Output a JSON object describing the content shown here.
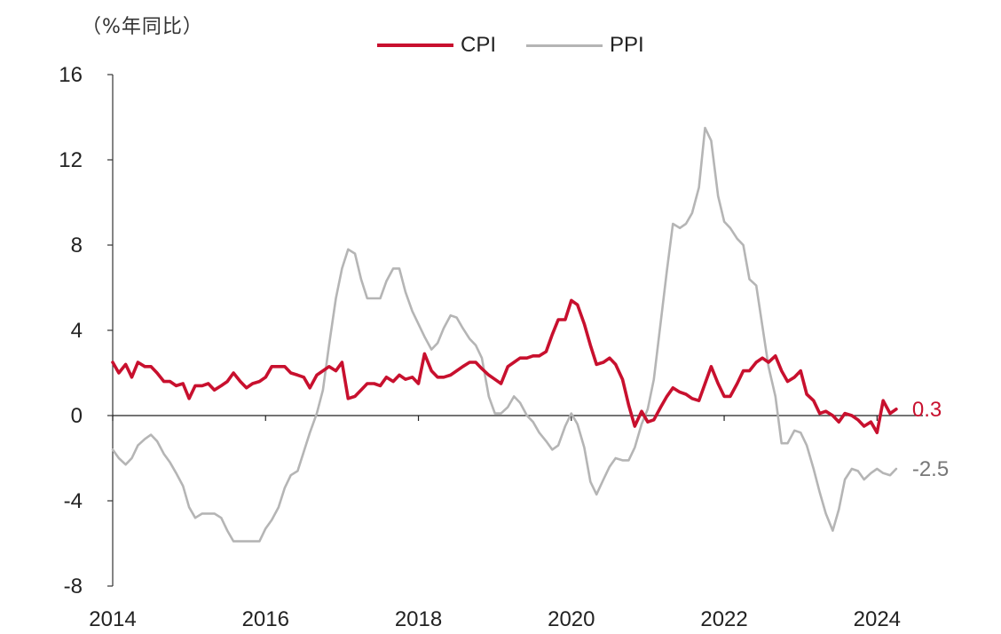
{
  "chart_data": {
    "type": "line",
    "unit_label": "（%年同比）",
    "ylim": [
      -8,
      16
    ],
    "yticks": [
      -8,
      -4,
      0,
      4,
      8,
      12,
      16
    ],
    "xlim": [
      2014,
      2024.6
    ],
    "xticks": [
      2014,
      2016,
      2018,
      2020,
      2022,
      2024
    ],
    "legend_position": "top-center",
    "series": [
      {
        "name": "CPI",
        "color": "#c8102e",
        "last_label": "0.3",
        "x": [
          2014.0,
          2014.08,
          2014.17,
          2014.25,
          2014.33,
          2014.42,
          2014.5,
          2014.58,
          2014.67,
          2014.75,
          2014.83,
          2014.92,
          2015.0,
          2015.08,
          2015.17,
          2015.25,
          2015.33,
          2015.42,
          2015.5,
          2015.58,
          2015.67,
          2015.75,
          2015.83,
          2015.92,
          2016.0,
          2016.08,
          2016.17,
          2016.25,
          2016.33,
          2016.42,
          2016.5,
          2016.58,
          2016.67,
          2016.75,
          2016.83,
          2016.92,
          2017.0,
          2017.08,
          2017.17,
          2017.25,
          2017.33,
          2017.42,
          2017.5,
          2017.58,
          2017.67,
          2017.75,
          2017.83,
          2017.92,
          2018.0,
          2018.08,
          2018.17,
          2018.25,
          2018.33,
          2018.42,
          2018.5,
          2018.58,
          2018.67,
          2018.75,
          2018.83,
          2018.92,
          2019.0,
          2019.08,
          2019.17,
          2019.25,
          2019.33,
          2019.42,
          2019.5,
          2019.58,
          2019.67,
          2019.75,
          2019.83,
          2019.92,
          2020.0,
          2020.08,
          2020.17,
          2020.25,
          2020.33,
          2020.42,
          2020.5,
          2020.58,
          2020.67,
          2020.75,
          2020.83,
          2020.92,
          2021.0,
          2021.08,
          2021.17,
          2021.25,
          2021.33,
          2021.42,
          2021.5,
          2021.58,
          2021.67,
          2021.75,
          2021.83,
          2021.92,
          2022.0,
          2022.08,
          2022.17,
          2022.25,
          2022.33,
          2022.42,
          2022.5,
          2022.58,
          2022.67,
          2022.75,
          2022.83,
          2022.92,
          2023.0,
          2023.08,
          2023.17,
          2023.25,
          2023.33,
          2023.42,
          2023.5,
          2023.58,
          2023.67,
          2023.75,
          2023.83,
          2023.92,
          2024.0,
          2024.08,
          2024.17,
          2024.25
        ],
        "values": [
          2.5,
          2.0,
          2.4,
          1.8,
          2.5,
          2.3,
          2.3,
          2.0,
          1.6,
          1.6,
          1.4,
          1.5,
          0.8,
          1.4,
          1.4,
          1.5,
          1.2,
          1.4,
          1.6,
          2.0,
          1.6,
          1.3,
          1.5,
          1.6,
          1.8,
          2.3,
          2.3,
          2.3,
          2.0,
          1.9,
          1.8,
          1.3,
          1.9,
          2.1,
          2.3,
          2.1,
          2.5,
          0.8,
          0.9,
          1.2,
          1.5,
          1.5,
          1.4,
          1.8,
          1.6,
          1.9,
          1.7,
          1.8,
          1.5,
          2.9,
          2.1,
          1.8,
          1.8,
          1.9,
          2.1,
          2.3,
          2.5,
          2.5,
          2.2,
          1.9,
          1.7,
          1.5,
          2.3,
          2.5,
          2.7,
          2.7,
          2.8,
          2.8,
          3.0,
          3.8,
          4.5,
          4.5,
          5.4,
          5.2,
          4.3,
          3.3,
          2.4,
          2.5,
          2.7,
          2.4,
          1.7,
          0.5,
          -0.5,
          0.2,
          -0.3,
          -0.2,
          0.4,
          0.9,
          1.3,
          1.1,
          1.0,
          0.8,
          0.7,
          1.5,
          2.3,
          1.5,
          0.9,
          0.9,
          1.5,
          2.1,
          2.1,
          2.5,
          2.7,
          2.5,
          2.8,
          2.1,
          1.6,
          1.8,
          2.1,
          1.0,
          0.7,
          0.1,
          0.2,
          0.0,
          -0.3,
          0.1,
          0.0,
          -0.2,
          -0.5,
          -0.3,
          -0.8,
          0.7,
          0.1,
          0.3
        ]
      },
      {
        "name": "PPI",
        "color": "#b5b5b5",
        "last_label": "-2.5",
        "x": [
          2014.0,
          2014.08,
          2014.17,
          2014.25,
          2014.33,
          2014.42,
          2014.5,
          2014.58,
          2014.67,
          2014.75,
          2014.83,
          2014.92,
          2015.0,
          2015.08,
          2015.17,
          2015.25,
          2015.33,
          2015.42,
          2015.5,
          2015.58,
          2015.67,
          2015.75,
          2015.83,
          2015.92,
          2016.0,
          2016.08,
          2016.17,
          2016.25,
          2016.33,
          2016.42,
          2016.5,
          2016.58,
          2016.67,
          2016.75,
          2016.83,
          2016.92,
          2017.0,
          2017.08,
          2017.17,
          2017.25,
          2017.33,
          2017.42,
          2017.5,
          2017.58,
          2017.67,
          2017.75,
          2017.83,
          2017.92,
          2018.0,
          2018.08,
          2018.17,
          2018.25,
          2018.33,
          2018.42,
          2018.5,
          2018.58,
          2018.67,
          2018.75,
          2018.83,
          2018.92,
          2019.0,
          2019.08,
          2019.17,
          2019.25,
          2019.33,
          2019.42,
          2019.5,
          2019.58,
          2019.67,
          2019.75,
          2019.83,
          2019.92,
          2020.0,
          2020.08,
          2020.17,
          2020.25,
          2020.33,
          2020.42,
          2020.5,
          2020.58,
          2020.67,
          2020.75,
          2020.83,
          2020.92,
          2021.0,
          2021.08,
          2021.17,
          2021.25,
          2021.33,
          2021.42,
          2021.5,
          2021.58,
          2021.67,
          2021.75,
          2021.83,
          2021.92,
          2022.0,
          2022.08,
          2022.17,
          2022.25,
          2022.33,
          2022.42,
          2022.5,
          2022.58,
          2022.67,
          2022.75,
          2022.83,
          2022.92,
          2023.0,
          2023.08,
          2023.17,
          2023.25,
          2023.33,
          2023.42,
          2023.5,
          2023.58,
          2023.67,
          2023.75,
          2023.83,
          2023.92,
          2024.0,
          2024.08,
          2024.17,
          2024.25
        ],
        "values": [
          -1.6,
          -2.0,
          -2.3,
          -2.0,
          -1.4,
          -1.1,
          -0.9,
          -1.2,
          -1.8,
          -2.2,
          -2.7,
          -3.3,
          -4.3,
          -4.8,
          -4.6,
          -4.6,
          -4.6,
          -4.8,
          -5.4,
          -5.9,
          -5.9,
          -5.9,
          -5.9,
          -5.9,
          -5.3,
          -4.9,
          -4.3,
          -3.4,
          -2.8,
          -2.6,
          -1.7,
          -0.8,
          0.1,
          1.2,
          3.3,
          5.5,
          6.9,
          7.8,
          7.6,
          6.4,
          5.5,
          5.5,
          5.5,
          6.3,
          6.9,
          6.9,
          5.8,
          4.9,
          4.3,
          3.7,
          3.1,
          3.4,
          4.1,
          4.7,
          4.6,
          4.1,
          3.6,
          3.3,
          2.7,
          0.9,
          0.1,
          0.1,
          0.4,
          0.9,
          0.6,
          0.0,
          -0.3,
          -0.8,
          -1.2,
          -1.6,
          -1.4,
          -0.5,
          0.1,
          -0.4,
          -1.5,
          -3.1,
          -3.7,
          -3.0,
          -2.4,
          -2.0,
          -2.1,
          -2.1,
          -1.5,
          -0.4,
          0.3,
          1.7,
          4.4,
          6.8,
          9.0,
          8.8,
          9.0,
          9.5,
          10.7,
          13.5,
          12.9,
          10.3,
          9.1,
          8.8,
          8.3,
          8.0,
          6.4,
          6.1,
          4.2,
          2.3,
          0.9,
          -1.3,
          -1.3,
          -0.7,
          -0.8,
          -1.4,
          -2.5,
          -3.6,
          -4.6,
          -5.4,
          -4.4,
          -3.0,
          -2.5,
          -2.6,
          -3.0,
          -2.7,
          -2.5,
          -2.7,
          -2.8,
          -2.5
        ]
      }
    ]
  }
}
